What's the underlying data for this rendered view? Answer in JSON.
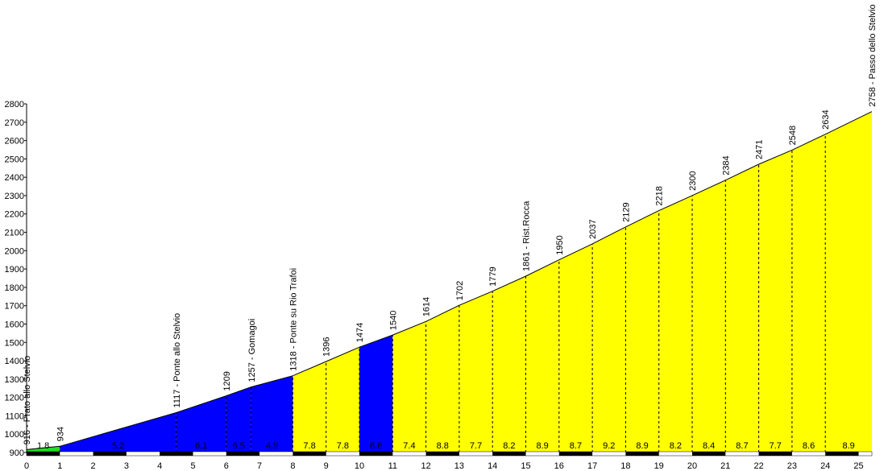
{
  "chart_data": {
    "type": "area",
    "title": "",
    "xlabel": "",
    "ylabel": "",
    "xlim": [
      0,
      25.4
    ],
    "ylim": [
      900,
      2800
    ],
    "x_ticks": [
      0,
      1,
      2,
      3,
      4,
      5,
      6,
      7,
      8,
      9,
      10,
      11,
      12,
      13,
      14,
      15,
      16,
      17,
      18,
      19,
      20,
      21,
      22,
      23,
      24,
      25
    ],
    "y_ticks": [
      900,
      1000,
      1100,
      1200,
      1300,
      1400,
      1500,
      1600,
      1700,
      1800,
      1900,
      2000,
      2100,
      2200,
      2300,
      2400,
      2500,
      2600,
      2700,
      2800
    ],
    "points": [
      {
        "x": 0,
        "y": 916,
        "label": "916 - Prato allo Stelvio"
      },
      {
        "x": 1,
        "y": 934,
        "label": "934"
      },
      {
        "x": 4.5,
        "y": 1117,
        "label": "1117 - Ponte allo Stelvio"
      },
      {
        "x": 6,
        "y": 1209,
        "label": "1209"
      },
      {
        "x": 6.75,
        "y": 1257,
        "label": "1257 - Gomagoi"
      },
      {
        "x": 8,
        "y": 1318,
        "label": "1318 - Ponte su Rio Trafoi"
      },
      {
        "x": 9,
        "y": 1396,
        "label": "1396"
      },
      {
        "x": 10,
        "y": 1474,
        "label": "1474"
      },
      {
        "x": 11,
        "y": 1540,
        "label": "1540"
      },
      {
        "x": 12,
        "y": 1614,
        "label": "1614"
      },
      {
        "x": 13,
        "y": 1702,
        "label": "1702"
      },
      {
        "x": 14,
        "y": 1779,
        "label": "1779"
      },
      {
        "x": 15,
        "y": 1861,
        "label": "1861 - Rist.Rocca"
      },
      {
        "x": 16,
        "y": 1950,
        "label": "1950"
      },
      {
        "x": 17,
        "y": 2037,
        "label": "2037"
      },
      {
        "x": 18,
        "y": 2129,
        "label": "2129"
      },
      {
        "x": 19,
        "y": 2218,
        "label": "2218"
      },
      {
        "x": 20,
        "y": 2300,
        "label": "2300"
      },
      {
        "x": 21,
        "y": 2384,
        "label": "2384"
      },
      {
        "x": 22,
        "y": 2471,
        "label": "2471"
      },
      {
        "x": 23,
        "y": 2548,
        "label": "2548"
      },
      {
        "x": 24,
        "y": 2634,
        "label": "2634"
      },
      {
        "x": 25.4,
        "y": 2758,
        "label": "2758 - Passo dello Stelvio"
      }
    ],
    "segments": [
      {
        "x0": 0,
        "x1": 1,
        "grade": "1.8",
        "color": "#22dd22"
      },
      {
        "x0": 1,
        "x1": 4.5,
        "grade": "5.2",
        "color": "#0000ff"
      },
      {
        "x0": 4.5,
        "x1": 6,
        "grade": "6.1",
        "color": "#0000ff"
      },
      {
        "x0": 6,
        "x1": 6.75,
        "grade": "6.5",
        "color": "#0000ff"
      },
      {
        "x0": 6.75,
        "x1": 8,
        "grade": "4.9",
        "color": "#0000ff"
      },
      {
        "x0": 8,
        "x1": 9,
        "grade": "7.8",
        "color": "#ffff00"
      },
      {
        "x0": 9,
        "x1": 10,
        "grade": "7.8",
        "color": "#ffff00"
      },
      {
        "x0": 10,
        "x1": 11,
        "grade": "6.6",
        "color": "#0000ff"
      },
      {
        "x0": 11,
        "x1": 12,
        "grade": "7.4",
        "color": "#ffff00"
      },
      {
        "x0": 12,
        "x1": 13,
        "grade": "8.8",
        "color": "#ffff00"
      },
      {
        "x0": 13,
        "x1": 14,
        "grade": "7.7",
        "color": "#ffff00"
      },
      {
        "x0": 14,
        "x1": 15,
        "grade": "8.2",
        "color": "#ffff00"
      },
      {
        "x0": 15,
        "x1": 16,
        "grade": "8.9",
        "color": "#ffff00"
      },
      {
        "x0": 16,
        "x1": 17,
        "grade": "8.7",
        "color": "#ffff00"
      },
      {
        "x0": 17,
        "x1": 18,
        "grade": "9.2",
        "color": "#ffff00"
      },
      {
        "x0": 18,
        "x1": 19,
        "grade": "8.9",
        "color": "#ffff00"
      },
      {
        "x0": 19,
        "x1": 20,
        "grade": "8.2",
        "color": "#ffff00"
      },
      {
        "x0": 20,
        "x1": 21,
        "grade": "8.4",
        "color": "#ffff00"
      },
      {
        "x0": 21,
        "x1": 22,
        "grade": "8.7",
        "color": "#ffff00"
      },
      {
        "x0": 22,
        "x1": 23,
        "grade": "7.7",
        "color": "#ffff00"
      },
      {
        "x0": 23,
        "x1": 24,
        "grade": "8.6",
        "color": "#ffff00"
      },
      {
        "x0": 24,
        "x1": 25.4,
        "grade": "8.9",
        "color": "#ffff00"
      }
    ],
    "colors": {
      "background": "#ffffff",
      "outline": "#000000",
      "scale_dark": "#000000",
      "scale_light": "#ffffff"
    }
  }
}
